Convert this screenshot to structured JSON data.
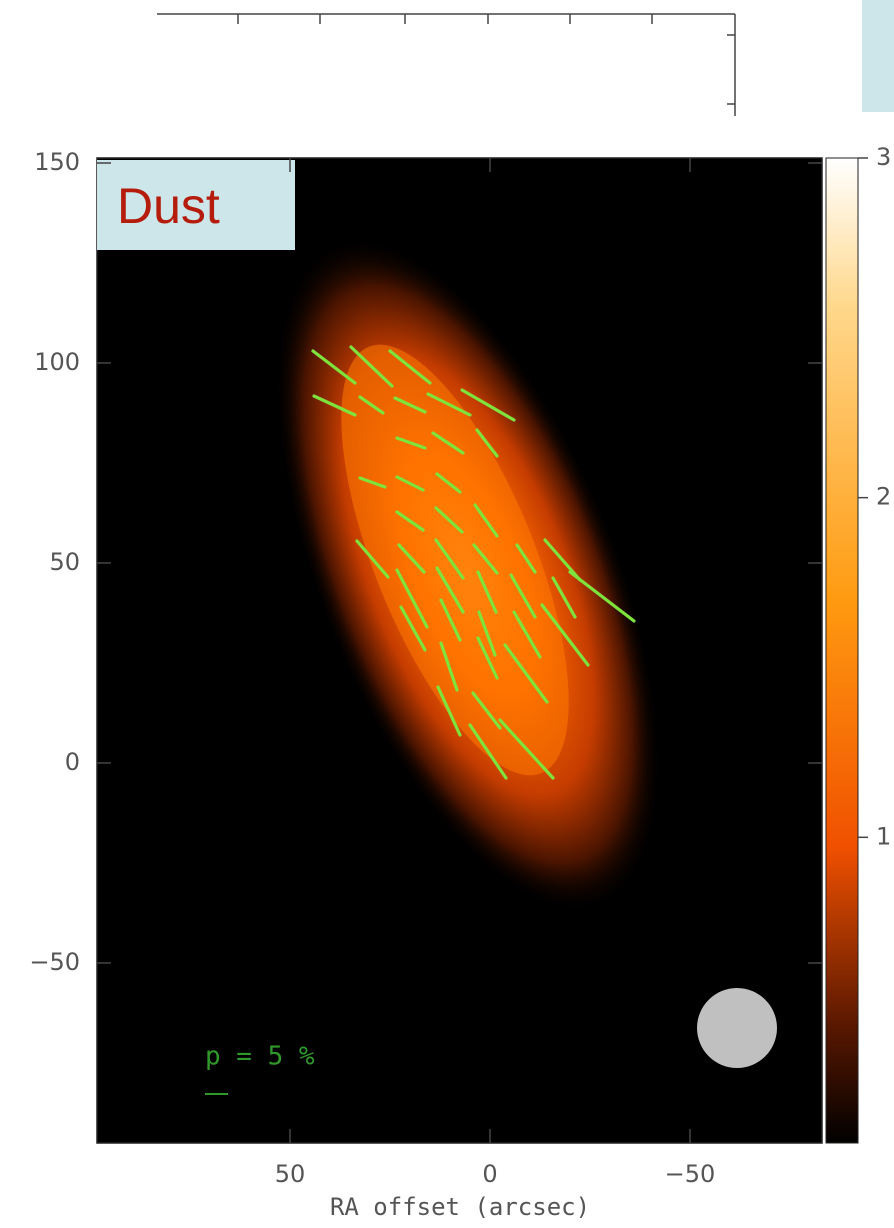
{
  "chart_data": {
    "type": "vector_map",
    "label": "Dust",
    "xlabel": "RA offset (arcsec)",
    "scale_label": "p = 5 %",
    "xlim": [
      98.25,
      -83
    ],
    "ylim": [
      -95,
      151.25
    ],
    "xticks": [
      50,
      0,
      {
        "value": -50,
        "label": "−50"
      }
    ],
    "yticks": [
      150,
      100,
      50,
      0,
      {
        "value": -50,
        "label": "−50"
      }
    ],
    "colorbar": {
      "lim": [
        0.1,
        3
      ],
      "ticks": [
        3,
        2,
        1
      ]
    },
    "vector_color": "#7ee33a",
    "segments": [
      [
        44.25,
        103,
        33.75,
        95
      ],
      [
        34.75,
        104,
        24.5,
        94.25
      ],
      [
        25,
        103,
        15,
        95
      ],
      [
        44,
        91.75,
        33.75,
        87
      ],
      [
        32.5,
        91.5,
        26.75,
        87.5
      ],
      [
        23.75,
        91.25,
        16.25,
        87.75
      ],
      [
        15.5,
        92.25,
        5,
        87
      ],
      [
        7,
        93.25,
        -6,
        85.75
      ],
      [
        23.25,
        81.25,
        16.25,
        78.75
      ],
      [
        14.25,
        82.5,
        6.75,
        77.5
      ],
      [
        3.25,
        83.25,
        -1.75,
        76.75
      ],
      [
        32.5,
        71.25,
        26.25,
        69
      ],
      [
        23.25,
        71.5,
        16.75,
        68.25
      ],
      [
        13.25,
        72.25,
        7.5,
        67.75
      ],
      [
        23.25,
        62.75,
        16.75,
        58.25
      ],
      [
        13.5,
        63.75,
        7,
        57.75
      ],
      [
        3.75,
        64.5,
        -1.75,
        56.75
      ],
      [
        33.25,
        55.5,
        25.5,
        46.5
      ],
      [
        22.75,
        54.5,
        16.5,
        47.75
      ],
      [
        13.5,
        55.75,
        6.75,
        46.25
      ],
      [
        4,
        54.5,
        -1.75,
        47.5
      ],
      [
        -6.75,
        54.5,
        -11.25,
        47.75
      ],
      [
        -13.75,
        55.75,
        -22.5,
        45.75
      ],
      [
        -20,
        47.75,
        -36,
        35.5
      ],
      [
        23.25,
        48.25,
        15.75,
        34
      ],
      [
        13.25,
        48.75,
        6.75,
        37.75
      ],
      [
        3,
        47.75,
        -1.5,
        37.75
      ],
      [
        -5.25,
        47,
        -11.25,
        36.5
      ],
      [
        -15.75,
        46.25,
        -21.25,
        36.5
      ],
      [
        22.25,
        39,
        16.25,
        28.25
      ],
      [
        12.25,
        40.75,
        7.5,
        30.75
      ],
      [
        2.75,
        37.75,
        -1.25,
        27
      ],
      [
        -6,
        37.75,
        -12.5,
        26.5
      ],
      [
        -13,
        39.5,
        -24.5,
        24.5
      ],
      [
        12.25,
        30,
        8.25,
        18.25
      ],
      [
        3,
        31.25,
        -1.75,
        21.25
      ],
      [
        -3.75,
        29.5,
        -14.25,
        15.25
      ],
      [
        13,
        19,
        7.5,
        7
      ],
      [
        4.25,
        17.5,
        -2.5,
        8.75
      ],
      [
        -2.5,
        10.75,
        -15.75,
        -3.75
      ],
      [
        5,
        9.5,
        -4,
        -3.75
      ]
    ]
  }
}
